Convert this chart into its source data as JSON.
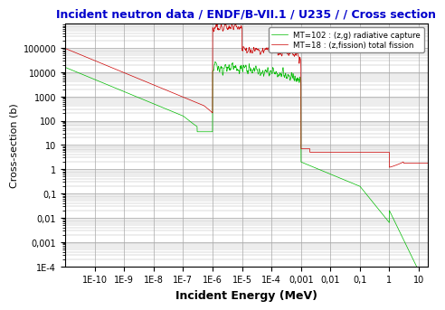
{
  "title": "Incident neutron data / ENDF/B-VII.1 / U235 / / Cross section",
  "xlabel": "Incident Energy (MeV)",
  "ylabel": "Cross-section (b)",
  "title_color": "#0000CC",
  "xlabel_fontsize": 9,
  "ylabel_fontsize": 8,
  "title_fontsize": 9,
  "legend_labels": [
    "MT=102 : (z,g) radiative capture",
    "MT=18 : (z,fission) total fission"
  ],
  "legend_colors": [
    "#00BB00",
    "#CC0000"
  ],
  "bg_color": "#FFFFFF",
  "plot_bg_color": "#FFFFFF",
  "grid_color": "#AAAAAA",
  "tick_label_fontsize": 7
}
